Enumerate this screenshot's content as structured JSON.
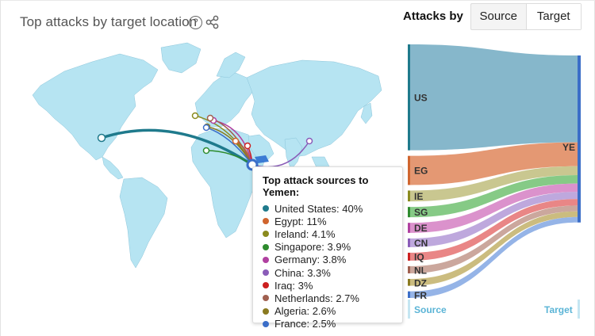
{
  "header": {
    "title": "Top attacks by target location",
    "attacks_by_label": "Attacks by",
    "toggle": [
      {
        "label": "Source",
        "active": false
      },
      {
        "label": "Target",
        "active": true
      }
    ]
  },
  "map": {
    "highlight_color": "#3b7bd4",
    "land_color": "#b6e4f2",
    "target_country": "YE"
  },
  "tooltip": {
    "title": "Top attack sources to Yemen:",
    "rows": [
      {
        "label": "United States: 40%",
        "color": "#1f7a8c"
      },
      {
        "label": "Egypt: 11%",
        "color": "#d0652e"
      },
      {
        "label": "Ireland: 4.1%",
        "color": "#8a8a1e"
      },
      {
        "label": "Singapore: 3.9%",
        "color": "#2e8b2e"
      },
      {
        "label": "Germany: 3.8%",
        "color": "#b040a0"
      },
      {
        "label": "China: 3.3%",
        "color": "#8a5cb8"
      },
      {
        "label": "Iraq: 3%",
        "color": "#cc2020"
      },
      {
        "label": "Netherlands: 2.7%",
        "color": "#a06050"
      },
      {
        "label": "Algeria: 2.6%",
        "color": "#8a7a20"
      },
      {
        "label": "France: 2.5%",
        "color": "#3b6ec8"
      }
    ]
  },
  "zoom": {
    "in": "+",
    "out": "−"
  },
  "sankey": {
    "sources": [
      {
        "code": "US",
        "value": 40,
        "color": "#7fb3c8",
        "bar": "#1f7a8c"
      },
      {
        "code": "EG",
        "value": 11,
        "color": "#e3926c",
        "bar": "#d0652e"
      },
      {
        "code": "IE",
        "value": 4.1,
        "color": "#c6c48a",
        "bar": "#8a8a1e"
      },
      {
        "code": "SG",
        "value": 3.9,
        "color": "#7fc77f",
        "bar": "#2e8b2e"
      },
      {
        "code": "DE",
        "value": 3.8,
        "color": "#d98cc9",
        "bar": "#b040a0"
      },
      {
        "code": "CN",
        "value": 3.3,
        "color": "#bba3db",
        "bar": "#8a5cb8"
      },
      {
        "code": "IQ",
        "value": 3,
        "color": "#e88080",
        "bar": "#cc2020"
      },
      {
        "code": "NL",
        "value": 2.7,
        "color": "#c8a298",
        "bar": "#a06050"
      },
      {
        "code": "DZ",
        "value": 2.6,
        "color": "#c8b878",
        "bar": "#8a7a20"
      },
      {
        "code": "FR",
        "value": 2.5,
        "color": "#8fb0e6",
        "bar": "#3b6ec8"
      }
    ],
    "target": {
      "code": "YE",
      "bar": "#3b6ec8"
    },
    "source_label": "Source",
    "target_label": "Target",
    "label_color": "#5ab4d6"
  }
}
